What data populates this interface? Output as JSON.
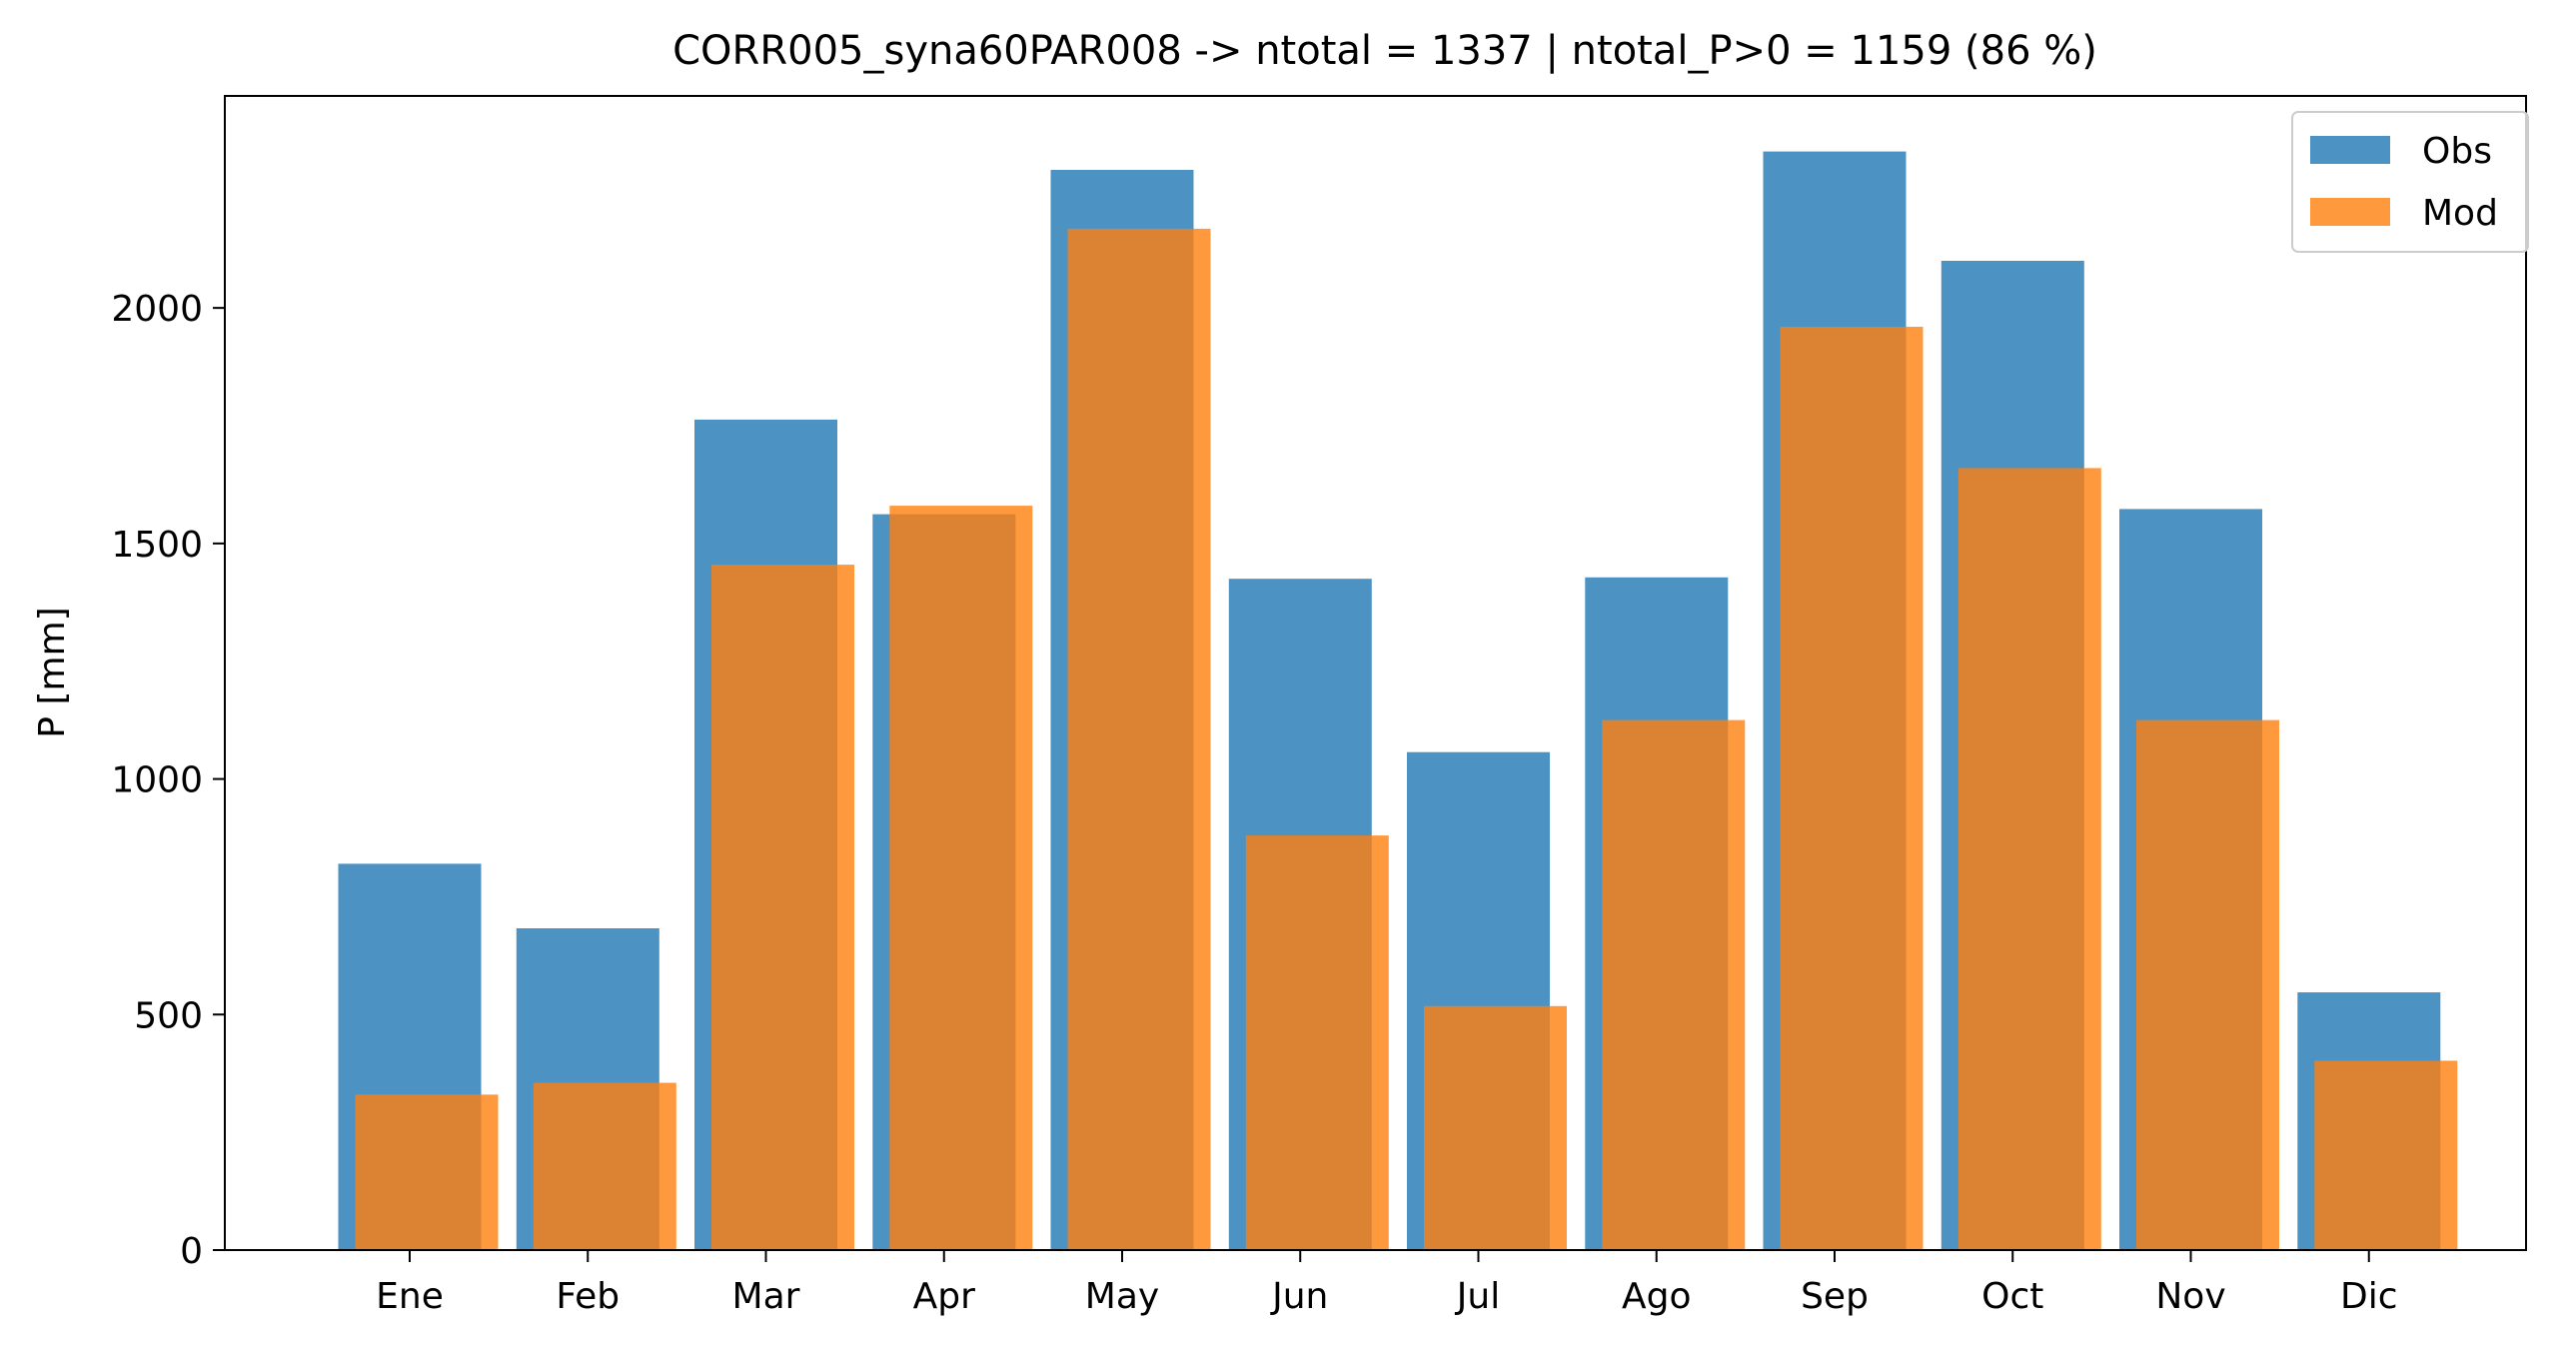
{
  "chart_data": {
    "type": "bar",
    "title": "CORR005_syna60PAR008 -> ntotal = 1337 | ntotal_P>0 = 1159 (86 %)",
    "xlabel": "",
    "ylabel": "P [mm]",
    "categories": [
      "Ene",
      "Feb",
      "Mar",
      "Apr",
      "May",
      "Jun",
      "Jul",
      "Ago",
      "Sep",
      "Oct",
      "Nov",
      "Dic"
    ],
    "series": [
      {
        "name": "Obs",
        "color": "#1f77b4",
        "opacity": 0.8,
        "values": [
          820,
          683,
          1763,
          1562,
          2293,
          1425,
          1057,
          1428,
          2332,
          2100,
          1573,
          547
        ]
      },
      {
        "name": "Mod",
        "color": "#ff7f0e",
        "opacity": 0.8,
        "values": [
          330,
          355,
          1455,
          1580,
          2168,
          880,
          518,
          1125,
          1960,
          1660,
          1125,
          402
        ]
      }
    ],
    "ylim": [
      0,
      2450
    ],
    "yticks": [
      0,
      500,
      1000,
      1500,
      2000
    ],
    "ytick_labels": [
      "0",
      "500",
      "1000",
      "1500",
      "2000"
    ],
    "grid": false,
    "legend_position": "top-right"
  }
}
